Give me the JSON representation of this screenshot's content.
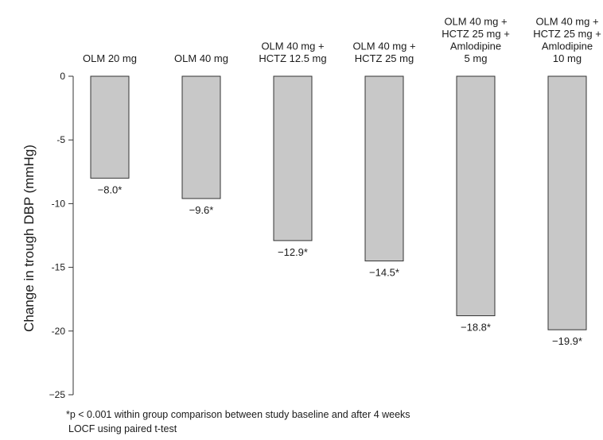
{
  "chart_data": {
    "type": "bar",
    "categories": [
      [
        "OLM 20 mg"
      ],
      [
        "OLM 40 mg"
      ],
      [
        "OLM 40 mg +",
        "HCTZ 12.5 mg"
      ],
      [
        "OLM 40 mg +",
        "HCTZ 25 mg"
      ],
      [
        "OLM 40 mg +",
        "HCTZ 25 mg +",
        "Amlodipine",
        "5 mg"
      ],
      [
        "OLM 40 mg +",
        "HCTZ 25 mg +",
        "Amlodipine",
        "10 mg"
      ]
    ],
    "values": [
      -8.0,
      -9.6,
      -12.9,
      -14.5,
      -18.8,
      -19.9
    ],
    "data_labels": [
      "−8.0*",
      "−9.6*",
      "−12.9*",
      "−14.5*",
      "−18.8*",
      "−19.9*"
    ],
    "ylabel": "Change in trough DBP (mmHg)",
    "xlabel": "",
    "ylim": [
      -25,
      0
    ],
    "yticks": [
      0,
      -5,
      -10,
      -15,
      -20,
      -25
    ],
    "ytick_labels": [
      "0",
      "-5",
      "-10",
      "-15",
      "-20",
      "−25"
    ],
    "bar_color": "#c8c8c8",
    "bar_edge_color": "#333333",
    "grid": false
  },
  "footnote": [
    "*p < 0.001 within group comparison between study baseline and after 4 weeks",
    "LOCF using paired t-test"
  ]
}
